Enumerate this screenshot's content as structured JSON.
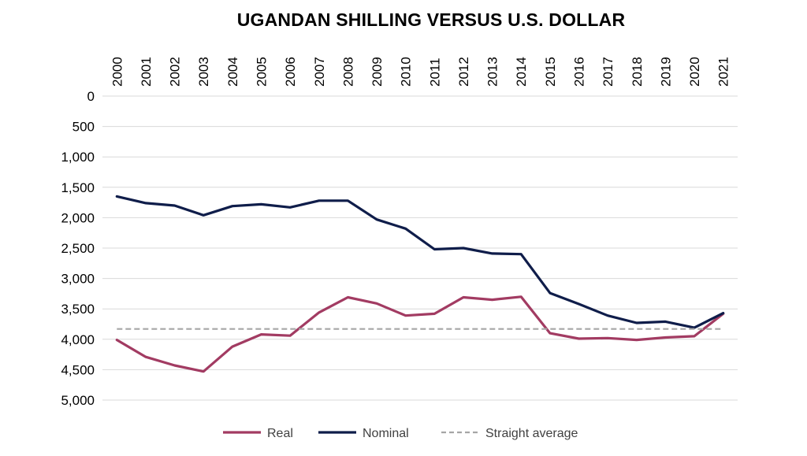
{
  "chart_data": {
    "type": "line",
    "title": "UGANDAN SHILLING VERSUS U.S. DOLLAR",
    "x": [
      "2000",
      "2001",
      "2002",
      "2003",
      "2004",
      "2005",
      "2006",
      "2007",
      "2008",
      "2009",
      "2010",
      "2011",
      "2012",
      "2013",
      "2014",
      "2015",
      "2016",
      "2017",
      "2018",
      "2019",
      "2020",
      "2021"
    ],
    "yticks": [
      "0",
      "500",
      "1,000",
      "1,500",
      "2,000",
      "2,500",
      "3,000",
      "3,500",
      "4,000",
      "4,500",
      "5,000"
    ],
    "ylim": [
      0,
      5000
    ],
    "y_inverted": true,
    "x_axis_position": "top",
    "grid": true,
    "legend_position": "bottom",
    "series": [
      {
        "name": "Real",
        "color": "#A23B62",
        "style": "solid",
        "values": [
          4010,
          4290,
          4430,
          4530,
          4120,
          3920,
          3940,
          3560,
          3310,
          3410,
          3610,
          3580,
          3310,
          3350,
          3300,
          3900,
          3990,
          3980,
          4010,
          3970,
          3950,
          3580
        ]
      },
      {
        "name": "Nominal",
        "color": "#0F1D4A",
        "style": "solid",
        "values": [
          1650,
          1760,
          1800,
          1960,
          1810,
          1780,
          1830,
          1720,
          1720,
          2030,
          2180,
          2520,
          2500,
          2590,
          2600,
          3240,
          3420,
          3610,
          3730,
          3710,
          3810,
          3570
        ]
      },
      {
        "name": "Straight average",
        "color": "#A6A6A6",
        "style": "dashed",
        "values": [
          3830,
          3830,
          3830,
          3830,
          3830,
          3830,
          3830,
          3830,
          3830,
          3830,
          3830,
          3830,
          3830,
          3830,
          3830,
          3830,
          3830,
          3830,
          3830,
          3830,
          3830,
          3830
        ]
      }
    ]
  }
}
